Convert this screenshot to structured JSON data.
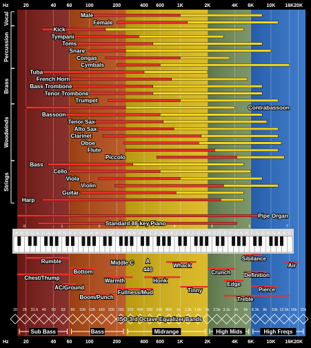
{
  "chart_data": {
    "type": "bar",
    "x_scale": "log",
    "x_range_hz": [
      16,
      24000
    ],
    "axis": {
      "unit": "Hz",
      "ticks": [
        {
          "hz": 20,
          "label": "20"
        },
        {
          "hz": 40,
          "label": "40"
        },
        {
          "hz": 60,
          "label": "60"
        },
        {
          "hz": 100,
          "label": "100"
        },
        {
          "hz": 200,
          "label": "200"
        },
        {
          "hz": 400,
          "label": "400"
        },
        {
          "hz": 600,
          "label": "600"
        },
        {
          "hz": 1000,
          "label": "1K"
        },
        {
          "hz": 2000,
          "label": "2K"
        },
        {
          "hz": 4000,
          "label": "4K"
        },
        {
          "hz": 6000,
          "label": "6K"
        },
        {
          "hz": 10000,
          "label": "10K"
        },
        {
          "hz": 16000,
          "label": "16K"
        },
        {
          "hz": 20000,
          "label": "20K"
        }
      ]
    },
    "regions": [
      {
        "from": 16,
        "to": 60,
        "color": "#7a1a16"
      },
      {
        "from": 60,
        "to": 250,
        "color": "#b34a14"
      },
      {
        "from": 250,
        "to": 2000,
        "color": "#d8b414"
      },
      {
        "from": 2000,
        "to": 6000,
        "color": "#6e8a58"
      },
      {
        "from": 6000,
        "to": 24000,
        "color": "#2a6cc4"
      }
    ],
    "categories": [
      {
        "name": "Vocal",
        "from_row": 0,
        "to_row": 1
      },
      {
        "name": "Percussion",
        "from_row": 2,
        "to_row": 7
      },
      {
        "name": "Brass",
        "from_row": 8,
        "to_row": 12
      },
      {
        "name": "Woodwinds",
        "from_row": 13,
        "to_row": 20
      },
      {
        "name": "Strings",
        "from_row": 21,
        "to_row": 26
      }
    ],
    "instruments": [
      {
        "name": "Male",
        "fund": [
          100,
          1000
        ],
        "harm": [
          1000,
          8000
        ],
        "label_hz": 80
      },
      {
        "name": "Female",
        "fund": [
          200,
          1200
        ],
        "harm": [
          1200,
          12000
        ],
        "label_hz": 110
      },
      {
        "name": "Kick",
        "fund": [
          30,
          150
        ],
        "harm": [
          150,
          5000
        ],
        "label_hz": 40
      },
      {
        "name": "Tympani",
        "fund": [
          60,
          350
        ],
        "harm": [
          350,
          3000
        ],
        "label_hz": 38
      },
      {
        "name": "Toms",
        "fund": [
          70,
          500
        ],
        "harm": [
          500,
          8000
        ],
        "label_hz": 50
      },
      {
        "name": "Snare",
        "fund": [
          100,
          250
        ],
        "harm": [
          250,
          10000
        ],
        "label_hz": 60
      },
      {
        "name": "Congas",
        "fund": [
          150,
          1000
        ],
        "harm": [
          1000,
          3500
        ],
        "label_hz": 72
      },
      {
        "name": "Cymbals",
        "fund": [
          200,
          600
        ],
        "harm": [
          600,
          16000
        ],
        "label_hz": 80
      },
      {
        "name": "Tuba",
        "fund": [
          28,
          400
        ],
        "harm": [
          400,
          2000
        ],
        "label_hz": 22
      },
      {
        "name": "French Horn",
        "fund": [
          60,
          800
        ],
        "harm": [
          800,
          5500
        ],
        "label_hz": 26
      },
      {
        "name": "Bass Trombone",
        "fund": [
          45,
          500
        ],
        "harm": [
          500,
          8000
        ],
        "label_hz": 22
      },
      {
        "name": "Tenor Trombone",
        "fund": [
          70,
          500
        ],
        "harm": [
          500,
          8000
        ],
        "label_hz": 32
      },
      {
        "name": "Trumpet",
        "fund": [
          160,
          1000
        ],
        "harm": [
          1000,
          12000
        ],
        "label_hz": 70
      },
      {
        "name": "Contrabassoon",
        "fund": [
          20,
          250
        ],
        "harm": [
          250,
          4000
        ],
        "label_hz": 5600
      },
      {
        "name": "Bassoon",
        "fund": [
          55,
          600
        ],
        "harm": [
          600,
          8000
        ],
        "label_hz": 30
      },
      {
        "name": "Tenor Sax",
        "fund": [
          100,
          650
        ],
        "harm": [
          650,
          9000
        ],
        "label_hz": 58
      },
      {
        "name": "Alto Sax",
        "fund": [
          125,
          850
        ],
        "harm": [
          850,
          12000
        ],
        "label_hz": 68
      },
      {
        "name": "Clarinet",
        "fund": [
          140,
          1700
        ],
        "harm": [
          1700,
          12000
        ],
        "label_hz": 62
      },
      {
        "name": "Oboe",
        "fund": [
          240,
          1600
        ],
        "harm": [
          1600,
          13000
        ],
        "label_hz": 80
      },
      {
        "name": "Flute",
        "fund": [
          250,
          2400
        ],
        "harm": [
          2400,
          12000
        ],
        "label_hz": 95
      },
      {
        "name": "Piccolo",
        "fund": [
          550,
          4200
        ],
        "harm": [
          4200,
          14000
        ],
        "label_hz": 150
      },
      {
        "name": "Bass",
        "fund": [
          35,
          300
        ],
        "harm": [
          300,
          5000
        ],
        "label_hz": 22
      },
      {
        "name": "Cello",
        "fund": [
          60,
          600
        ],
        "harm": [
          600,
          6000
        ],
        "label_hz": 40
      },
      {
        "name": "Viola",
        "fund": [
          125,
          1000
        ],
        "harm": [
          1000,
          8000
        ],
        "label_hz": 55
      },
      {
        "name": "Violin",
        "fund": [
          190,
          3000
        ],
        "harm": [
          3000,
          12000
        ],
        "label_hz": 80
      },
      {
        "name": "Guitar",
        "fund": [
          80,
          900
        ],
        "harm": [
          900,
          5000
        ],
        "label_hz": 50
      },
      {
        "name": "Harp",
        "fund": [
          30,
          2800
        ],
        "harm": [
          2800,
          5000
        ],
        "label_hz": 18
      }
    ],
    "wide_ranges": [
      {
        "name": "Pipe Organ",
        "from": 16,
        "to": 7500,
        "label_hz": 7200
      },
      {
        "name": "Standard 88-key Piano",
        "from": 27,
        "to": 4200,
        "label_hz": 150
      }
    ],
    "piano": {
      "octave_labels": [
        "0",
        "1",
        "2",
        "3",
        "4",
        "5",
        "6",
        "7",
        "8"
      ],
      "note_letters": "CDEFGAB"
    },
    "terms": [
      {
        "name": "Rumble",
        "from": 20,
        "to": 60,
        "label_hz": 38
      },
      {
        "name": "Chest/Thump",
        "from": 16,
        "to": 80,
        "label_hz": 30
      },
      {
        "name": "AC/Ground",
        "from": 50,
        "to": 70,
        "label_hz": 60
      },
      {
        "name": "Bottom",
        "from": 60,
        "to": 120,
        "label_hz": 85
      },
      {
        "name": "Boom/Punch",
        "from": 80,
        "to": 200,
        "label_hz": 120
      },
      {
        "name": "Warmth",
        "from": 150,
        "to": 300,
        "label_hz": 190
      },
      {
        "name": "Middle C",
        "from": 261,
        "to": 262,
        "label_hz": 230
      },
      {
        "name": "A",
        "from": 440,
        "to": 441,
        "label_hz": 440
      },
      {
        "name": "440",
        "from": 440,
        "to": 441,
        "label_hz": 440
      },
      {
        "name": "Fullness/Mud",
        "from": 200,
        "to": 500,
        "label_hz": 320
      },
      {
        "name": "Honk",
        "from": 400,
        "to": 1000,
        "label_hz": 600
      },
      {
        "name": "Whack",
        "from": 700,
        "to": 1500,
        "label_hz": 1050
      },
      {
        "name": "Tinny",
        "from": 1000,
        "to": 2000,
        "label_hz": 1450
      },
      {
        "name": "Crunch",
        "from": 2000,
        "to": 4000,
        "label_hz": 2800
      },
      {
        "name": "Edge",
        "from": 3000,
        "to": 5000,
        "label_hz": 3900
      },
      {
        "name": "Sibilance",
        "from": 5000,
        "to": 8000,
        "label_hz": 6500
      },
      {
        "name": "Definition",
        "from": 5000,
        "to": 9000,
        "label_hz": 7000
      },
      {
        "name": "Pierce",
        "from": 6000,
        "to": 12000,
        "label_hz": 9000
      },
      {
        "name": "Treble",
        "from": 3000,
        "to": 16000,
        "label_hz": 5200
      },
      {
        "name": "Air",
        "from": 14000,
        "to": 20000,
        "label_hz": 17000
      }
    ],
    "eq_title": "ISO 3rd Octave Equalizer Bands",
    "eq_bands": [
      "20",
      "25",
      "31.5",
      "40",
      "50",
      "63",
      "80",
      "100",
      "125",
      "160",
      "200",
      "250",
      "315",
      "400",
      "500",
      "630",
      "800",
      "1k",
      "1.2k",
      "1.6k",
      "2k",
      "2.5k",
      "3.1k",
      "4k",
      "5k",
      "6.3k",
      "8k",
      "10k",
      "12.5k",
      "16k",
      "20k"
    ],
    "ranges": [
      {
        "name": "Sub Bass",
        "from": 16,
        "to": 60
      },
      {
        "name": "Bass",
        "from": 60,
        "to": 250
      },
      {
        "name": "Midrange",
        "from": 250,
        "to": 2000
      },
      {
        "name": "High Mids",
        "from": 2000,
        "to": 6000
      },
      {
        "name": "High Freqs",
        "from": 6000,
        "to": 24000
      }
    ],
    "colors": {
      "fundamental": "#e8302a",
      "harmonics": "#f2d622",
      "brackets": "#ffffff",
      "term_line": "#e8302a"
    }
  }
}
